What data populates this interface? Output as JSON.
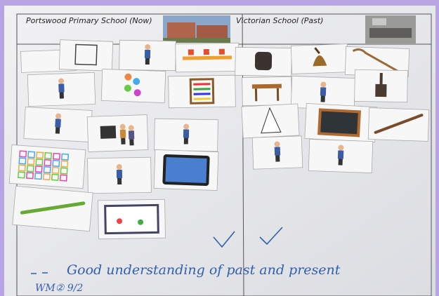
{
  "header": {
    "left_title": "Portswood Primary School (Now)",
    "right_title": "Victorian School (Past)"
  },
  "note": {
    "comment": "Good understanding of past and present",
    "signature": "WM② 9/2"
  }
}
